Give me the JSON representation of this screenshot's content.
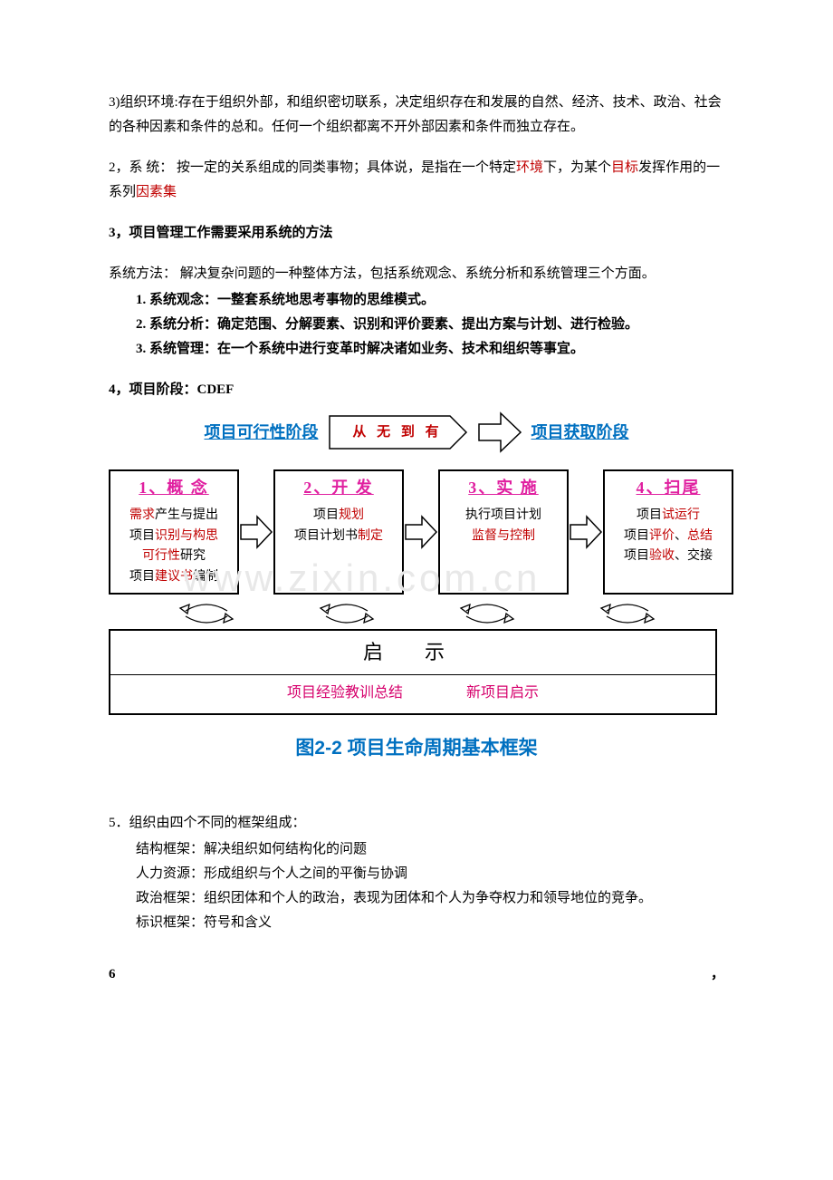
{
  "colors": {
    "text": "#000000",
    "red": "#c00000",
    "magenta": "#e020a0",
    "pink": "#d6006c",
    "blue": "#0070c0",
    "watermark": "#e8e8e8",
    "bg": "#ffffff",
    "border": "#000000"
  },
  "typography": {
    "body_font": "SimSun",
    "body_size_pt": 11,
    "heading_font": "SimHei",
    "caption_size_pt": 16,
    "phase_title_size_pt": 14
  },
  "p1": {
    "prefix": "3)组织环境:",
    "rest": "存在于组织外部，和组织密切联系，决定组织存在和发展的自然、经济、技术、政治、社会的各种因素和条件的总和。任何一个组织都离不开外部因素和条件而独立存在。"
  },
  "p2": {
    "prefix": "2，系  统：  按一定的关系组成的同类事物；具体说，是指在一个特定",
    "kw1": "环境",
    "mid1": "下，为某个",
    "kw2": "目标",
    "mid2": "发挥作用的一系列",
    "kw3": "因素集"
  },
  "p3": "3，项目管理工作需要采用系统的方法",
  "p4": "系统方法：  解决复杂问题的一种整体方法，包括系统观念、系统分析和系统管理三个方面。",
  "p4_items": [
    "1.  系统观念：一整套系统地思考事物的思维模式。",
    "2.  系统分析：确定范围、分解要素、识别和评价要素、提出方案与计划、进行检验。",
    "3.  系统管理：在一个系统中进行变革时解决诸如业务、技术和组织等事宜。"
  ],
  "p5": "4，项目阶段：CDEF",
  "figure": {
    "watermark": "www.zixin.com.cn",
    "feasibility_label": "项目可行性阶段",
    "center_arrow_text": "从 无 到 有",
    "acquire_label": "项目获取阶段",
    "phases": [
      {
        "title": "1、概 念",
        "lines": [
          [
            {
              "t": "需求",
              "c": "red"
            },
            {
              "t": "产生与提出",
              "c": "black"
            }
          ],
          [
            {
              "t": "项目",
              "c": "black"
            },
            {
              "t": "识别与构思",
              "c": "red"
            }
          ],
          [
            {
              "t": "可行性",
              "c": "red"
            },
            {
              "t": "研究",
              "c": "black"
            }
          ],
          [
            {
              "t": "项目",
              "c": "black"
            },
            {
              "t": "建议书",
              "c": "red"
            },
            {
              "t": "编制",
              "c": "black"
            }
          ]
        ]
      },
      {
        "title": "2、开 发",
        "lines": [
          [
            {
              "t": "项目",
              "c": "black"
            },
            {
              "t": "规划",
              "c": "red"
            }
          ],
          [
            {
              "t": " ",
              "c": "black"
            }
          ],
          [
            {
              "t": "项目计划书",
              "c": "black"
            },
            {
              "t": "制定",
              "c": "red"
            }
          ]
        ]
      },
      {
        "title": "3、实  施",
        "lines": [
          [
            {
              "t": "执行项目计划",
              "c": "black"
            }
          ],
          [
            {
              "t": " ",
              "c": "black"
            }
          ],
          [
            {
              "t": "监督与控制",
              "c": "red"
            }
          ]
        ]
      },
      {
        "title": "4、扫尾",
        "lines": [
          [
            {
              "t": "项目",
              "c": "black"
            },
            {
              "t": "试运行",
              "c": "red"
            }
          ],
          [
            {
              "t": "项目",
              "c": "black"
            },
            {
              "t": "评价",
              "c": "red"
            },
            {
              "t": "、",
              "c": "black"
            },
            {
              "t": "总结",
              "c": "red"
            }
          ],
          [
            {
              "t": "项目",
              "c": "black"
            },
            {
              "t": "验收",
              "c": "red"
            },
            {
              "t": "、交接",
              "c": "black"
            }
          ]
        ]
      }
    ],
    "qishi_title": "启    示",
    "qishi_left": "项目经验教训总结",
    "qishi_right": "新项目启示",
    "caption": "图2-2 项目生命周期基本框架"
  },
  "p6": "5．组织由四个不同的框架组成：",
  "p6_items": [
    "结构框架：解决组织如何结构化的问题",
    "人力资源：形成组织与个人之间的平衡与协调",
    "政治框架：组织团体和个人的政治，表现为团体和个人为争夺权力和领导地位的竞争。",
    "标识框架：符号和含义"
  ],
  "p7_left": "6",
  "p7_right": "，"
}
